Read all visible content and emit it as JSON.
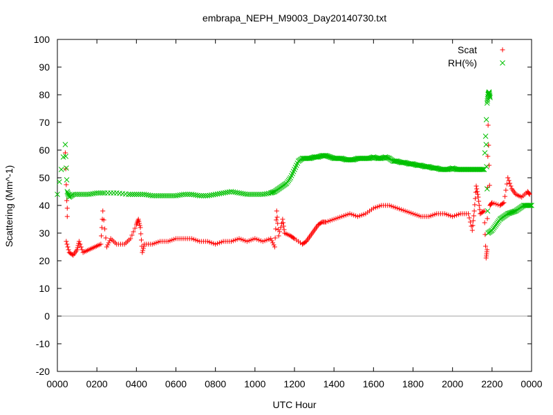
{
  "chart_data": {
    "type": "scatter",
    "title": "embrapa_NEPH_M9003_Day20140730.txt",
    "xlabel": "UTC Hour",
    "ylabel": "Scattering (Mm^-1)",
    "xlim": [
      0,
      2400
    ],
    "ylim": [
      -20,
      100
    ],
    "grid": false,
    "legend_position": "top-right",
    "x_ticks": [
      "0000",
      "0200",
      "0400",
      "0600",
      "0800",
      "1000",
      "1200",
      "1400",
      "1600",
      "1800",
      "2000",
      "2200",
      "0000"
    ],
    "y_ticks": [
      "-20",
      "-10",
      "0",
      "10",
      "20",
      "30",
      "40",
      "50",
      "60",
      "70",
      "80",
      "90",
      "100"
    ],
    "zero_line": true,
    "series": [
      {
        "name": "Scat",
        "marker": "+",
        "color": "#ff0000",
        "points": [
          [
            40,
            59
          ],
          [
            50,
            36
          ],
          [
            50,
            39
          ],
          [
            45,
            27
          ],
          [
            60,
            23
          ],
          [
            80,
            22
          ],
          [
            100,
            24
          ],
          [
            110,
            27
          ],
          [
            130,
            23
          ],
          [
            160,
            24
          ],
          [
            190,
            25
          ],
          [
            220,
            26
          ],
          [
            230,
            38
          ],
          [
            250,
            25
          ],
          [
            270,
            28
          ],
          [
            300,
            26
          ],
          [
            340,
            26
          ],
          [
            370,
            28
          ],
          [
            400,
            33
          ],
          [
            410,
            35
          ],
          [
            420,
            32
          ],
          [
            430,
            23
          ],
          [
            440,
            26
          ],
          [
            480,
            26
          ],
          [
            520,
            27
          ],
          [
            560,
            27
          ],
          [
            600,
            28
          ],
          [
            640,
            28
          ],
          [
            680,
            28
          ],
          [
            720,
            27
          ],
          [
            760,
            27
          ],
          [
            800,
            26
          ],
          [
            840,
            27
          ],
          [
            880,
            27
          ],
          [
            920,
            28
          ],
          [
            960,
            27
          ],
          [
            1000,
            28
          ],
          [
            1040,
            27
          ],
          [
            1080,
            28
          ],
          [
            1100,
            25
          ],
          [
            1110,
            38
          ],
          [
            1120,
            29
          ],
          [
            1140,
            35
          ],
          [
            1150,
            30
          ],
          [
            1180,
            29
          ],
          [
            1200,
            28
          ],
          [
            1240,
            26
          ],
          [
            1260,
            27
          ],
          [
            1280,
            29
          ],
          [
            1300,
            31
          ],
          [
            1320,
            33
          ],
          [
            1340,
            34
          ],
          [
            1360,
            34
          ],
          [
            1400,
            35
          ],
          [
            1440,
            36
          ],
          [
            1480,
            37
          ],
          [
            1520,
            36
          ],
          [
            1560,
            37
          ],
          [
            1600,
            39
          ],
          [
            1640,
            40
          ],
          [
            1680,
            40
          ],
          [
            1720,
            39
          ],
          [
            1760,
            38
          ],
          [
            1800,
            37
          ],
          [
            1840,
            36
          ],
          [
            1880,
            36
          ],
          [
            1920,
            37
          ],
          [
            1960,
            37
          ],
          [
            2000,
            36
          ],
          [
            2040,
            37
          ],
          [
            2080,
            37
          ],
          [
            2100,
            31
          ],
          [
            2110,
            38
          ],
          [
            2120,
            47
          ],
          [
            2130,
            43
          ],
          [
            2140,
            37
          ],
          [
            2160,
            38
          ],
          [
            2170,
            21
          ],
          [
            2175,
            24
          ],
          [
            2180,
            69
          ],
          [
            2190,
            40
          ],
          [
            2200,
            41
          ],
          [
            2240,
            40
          ],
          [
            2260,
            41
          ],
          [
            2280,
            50
          ],
          [
            2300,
            46
          ],
          [
            2320,
            44
          ],
          [
            2350,
            43
          ],
          [
            2380,
            45
          ],
          [
            2390,
            44
          ]
        ]
      },
      {
        "name": "RH(%)",
        "marker": "x",
        "color": "#00c000",
        "points": [
          [
            0,
            44
          ],
          [
            40,
            62
          ],
          [
            50,
            45
          ],
          [
            60,
            43
          ],
          [
            80,
            44
          ],
          [
            120,
            44
          ],
          [
            160,
            44
          ],
          [
            200,
            44.5
          ],
          [
            240,
            44.5
          ],
          [
            300,
            44.5
          ],
          [
            360,
            44
          ],
          [
            400,
            44
          ],
          [
            440,
            44
          ],
          [
            480,
            43.5
          ],
          [
            520,
            43.5
          ],
          [
            560,
            43.5
          ],
          [
            600,
            43.5
          ],
          [
            640,
            44
          ],
          [
            680,
            44
          ],
          [
            720,
            43.5
          ],
          [
            760,
            43.5
          ],
          [
            800,
            44
          ],
          [
            840,
            44.5
          ],
          [
            880,
            45
          ],
          [
            920,
            44.5
          ],
          [
            960,
            44
          ],
          [
            1000,
            44
          ],
          [
            1040,
            44
          ],
          [
            1080,
            44.5
          ],
          [
            1100,
            45
          ],
          [
            1120,
            46
          ],
          [
            1140,
            47
          ],
          [
            1160,
            48
          ],
          [
            1180,
            50
          ],
          [
            1200,
            53
          ],
          [
            1220,
            56
          ],
          [
            1240,
            57
          ],
          [
            1260,
            57
          ],
          [
            1280,
            57
          ],
          [
            1300,
            57.5
          ],
          [
            1320,
            57.5
          ],
          [
            1340,
            58
          ],
          [
            1360,
            58
          ],
          [
            1380,
            57.5
          ],
          [
            1400,
            57
          ],
          [
            1420,
            57
          ],
          [
            1440,
            57
          ],
          [
            1460,
            56.5
          ],
          [
            1480,
            56.5
          ],
          [
            1500,
            56.5
          ],
          [
            1520,
            57
          ],
          [
            1540,
            57
          ],
          [
            1560,
            57
          ],
          [
            1580,
            57
          ],
          [
            1600,
            57.5
          ],
          [
            1620,
            57
          ],
          [
            1640,
            57
          ],
          [
            1660,
            57.5
          ],
          [
            1680,
            57
          ],
          [
            1700,
            56
          ],
          [
            1720,
            56
          ],
          [
            1740,
            55.5
          ],
          [
            1760,
            55.5
          ],
          [
            1780,
            55
          ],
          [
            1800,
            55
          ],
          [
            1820,
            54.5
          ],
          [
            1840,
            54.5
          ],
          [
            1860,
            54
          ],
          [
            1880,
            54
          ],
          [
            1900,
            53.5
          ],
          [
            1920,
            53.5
          ],
          [
            1940,
            53
          ],
          [
            1960,
            53
          ],
          [
            1980,
            53
          ],
          [
            2000,
            53.5
          ],
          [
            2020,
            53
          ],
          [
            2040,
            53
          ],
          [
            2060,
            53
          ],
          [
            2080,
            53
          ],
          [
            2100,
            53
          ],
          [
            2120,
            53
          ],
          [
            2140,
            53
          ],
          [
            2160,
            53
          ],
          [
            2175,
            77
          ],
          [
            2180,
            80
          ],
          [
            2185,
            81
          ],
          [
            2190,
            79
          ],
          [
            2170,
            62
          ],
          [
            2180,
            30
          ],
          [
            2200,
            31
          ],
          [
            2220,
            33
          ],
          [
            2240,
            35
          ],
          [
            2260,
            36
          ],
          [
            2280,
            37
          ],
          [
            2300,
            37.5
          ],
          [
            2320,
            38
          ],
          [
            2340,
            39
          ],
          [
            2360,
            40
          ],
          [
            2380,
            40
          ],
          [
            2400,
            40
          ]
        ]
      }
    ]
  }
}
